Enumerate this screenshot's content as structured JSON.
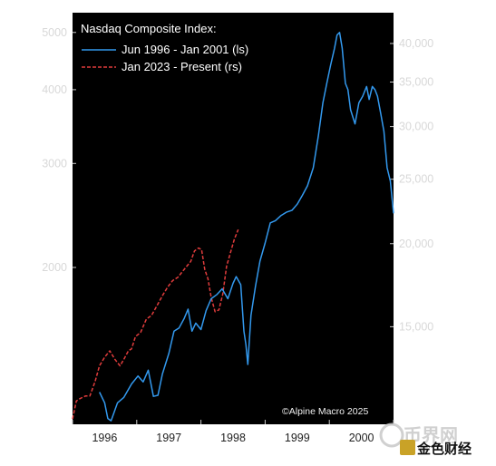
{
  "chart_data": {
    "type": "line",
    "title": "Nasdaq Composite Index:",
    "legend_position": "top-left",
    "x_tick_labels": [
      "1996",
      "1997",
      "1998",
      "1999",
      "2000"
    ],
    "left_axis": {
      "scale": "log",
      "range": [
        1085,
        5400
      ],
      "ticks": [
        5000,
        4000,
        3000,
        2000
      ]
    },
    "right_axis": {
      "scale": "log",
      "range": [
        10700,
        44500
      ],
      "ticks": [
        40000,
        35000,
        30000,
        25000,
        20000,
        15000
      ],
      "tick_labels": [
        "40,000",
        "35,000",
        "30,000",
        "25,000",
        "20,000",
        "15,000"
      ]
    },
    "x_range": [
      1996.0,
      2001.0
    ],
    "series": [
      {
        "name": "Jun 1996 - Jan 2001 (ls)",
        "axis": "left",
        "color": "#3399ee",
        "style": "solid",
        "x": [
          1996.42,
          1996.5,
          1996.55,
          1996.6,
          1996.7,
          1996.8,
          1996.92,
          1997.02,
          1997.1,
          1997.18,
          1997.26,
          1997.33,
          1997.4,
          1997.5,
          1997.58,
          1997.66,
          1997.74,
          1997.8,
          1997.86,
          1997.92,
          1998.0,
          1998.08,
          1998.16,
          1998.25,
          1998.33,
          1998.42,
          1998.5,
          1998.55,
          1998.62,
          1998.67,
          1998.7,
          1998.73,
          1998.78,
          1998.85,
          1998.92,
          1999.0,
          1999.08,
          1999.16,
          1999.25,
          1999.33,
          1999.42,
          1999.5,
          1999.58,
          1999.66,
          1999.75,
          1999.83,
          1999.9,
          1999.96,
          2000.02,
          2000.08,
          2000.12,
          2000.16,
          2000.2,
          2000.25,
          2000.29,
          2000.33,
          2000.4,
          2000.46,
          2000.52,
          2000.58,
          2000.62,
          2000.67,
          2000.71,
          2000.75,
          2000.8,
          2000.85,
          2000.9,
          2000.95,
          2001.0
        ],
        "values": [
          1230,
          1180,
          1110,
          1100,
          1180,
          1205,
          1270,
          1310,
          1280,
          1340,
          1210,
          1215,
          1320,
          1430,
          1560,
          1580,
          1640,
          1700,
          1560,
          1610,
          1570,
          1690,
          1770,
          1800,
          1840,
          1770,
          1880,
          1930,
          1870,
          1560,
          1480,
          1370,
          1660,
          1860,
          2050,
          2200,
          2380,
          2400,
          2450,
          2480,
          2500,
          2560,
          2650,
          2750,
          2950,
          3350,
          3800,
          4100,
          4400,
          4700,
          4950,
          5000,
          4700,
          4100,
          4000,
          3700,
          3500,
          3800,
          3900,
          4050,
          3850,
          4050,
          4000,
          3900,
          3650,
          3400,
          2950,
          2800,
          2470
        ]
      },
      {
        "name": "Jan 2023 - Present (rs)",
        "axis": "right",
        "color": "#e03c3c",
        "style": "dashed",
        "x": [
          1996.0,
          1996.06,
          1996.12,
          1996.2,
          1996.27,
          1996.35,
          1996.42,
          1996.5,
          1996.58,
          1996.66,
          1996.74,
          1996.8,
          1996.87,
          1996.92,
          1996.98,
          1997.06,
          1997.15,
          1997.23,
          1997.31,
          1997.4,
          1997.48,
          1997.56,
          1997.64,
          1997.72,
          1997.78,
          1997.84,
          1997.9,
          1997.96,
          1998.01,
          1998.06,
          1998.11,
          1998.16,
          1998.22,
          1998.28,
          1998.34,
          1998.4,
          1998.46,
          1998.52,
          1998.58
        ],
        "values": [
          10900,
          11600,
          11700,
          11800,
          11800,
          12400,
          13100,
          13500,
          13800,
          13400,
          13100,
          13400,
          13800,
          13900,
          14500,
          14700,
          15400,
          15600,
          16100,
          16700,
          17200,
          17600,
          17800,
          18200,
          18500,
          18800,
          19500,
          19700,
          19600,
          18300,
          17700,
          16600,
          15800,
          15900,
          16800,
          18500,
          19400,
          20300,
          21000
        ]
      }
    ],
    "annotations": [
      "©Alpine Macro 2025"
    ]
  },
  "watermarks": {
    "top": "币界网",
    "bottom": "金色财经"
  }
}
